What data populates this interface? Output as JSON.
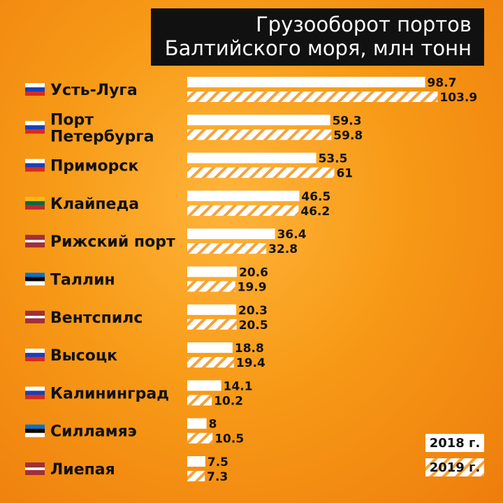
{
  "title": {
    "line1": "Грузооборот портов",
    "line2": "Балтийского моря, млн тонн"
  },
  "legend": {
    "y2018": "2018 г.",
    "y2019": "2019 г."
  },
  "colors": {
    "bar_2018": "#ffffff",
    "bar_2019_hatch": "#f6a23a",
    "text": "#111111",
    "title_bg": "#111111"
  },
  "chart_data": {
    "type": "bar",
    "orientation": "horizontal",
    "title": "Грузооборот портов Балтийского моря, млн тонн",
    "categories": [
      "Усть-Луга",
      "Порт Петербурга",
      "Приморск",
      "Клайпеда",
      "Рижский порт",
      "Таллин",
      "Вентспилс",
      "Высоцк",
      "Калининград",
      "Силламяэ",
      "Лиепая"
    ],
    "category_lines": [
      [
        "Усть-Луга"
      ],
      [
        "Порт",
        "Петербурга"
      ],
      [
        "Приморск"
      ],
      [
        "Клайпеда"
      ],
      [
        "Рижский порт"
      ],
      [
        "Таллин"
      ],
      [
        "Вентспилс"
      ],
      [
        "Высоцк"
      ],
      [
        "Калининград"
      ],
      [
        "Силламяэ"
      ],
      [
        "Лиепая"
      ]
    ],
    "flags": [
      "russia-flag",
      "russia-flag",
      "russia-flag",
      "lithuania-flag",
      "latvia-flag",
      "estonia-flag",
      "latvia-flag",
      "russia-flag",
      "russia-flag",
      "estonia-flag",
      "latvia-flag"
    ],
    "series": [
      {
        "name": "2018 г.",
        "values": [
          98.7,
          59.3,
          53.5,
          46.5,
          36.4,
          20.6,
          20.3,
          18.8,
          14.1,
          8,
          7.5
        ],
        "labels": [
          "98.7",
          "59.3",
          "53.5",
          "46.5",
          "36.4",
          "20.6",
          "20.3",
          "18.8",
          "14.1",
          "8",
          "7.5"
        ]
      },
      {
        "name": "2019 г.",
        "values": [
          103.9,
          59.8,
          61,
          46.2,
          32.8,
          19.9,
          20.5,
          19.4,
          10.2,
          10.5,
          7.3
        ],
        "labels": [
          "103.9",
          "59.8",
          "61",
          "46.2",
          "32.8",
          "19.9",
          "20.5",
          "19.4",
          "10.2",
          "10.5",
          "7.3"
        ]
      }
    ],
    "legend_position": "bottom-right",
    "grid": false
  }
}
